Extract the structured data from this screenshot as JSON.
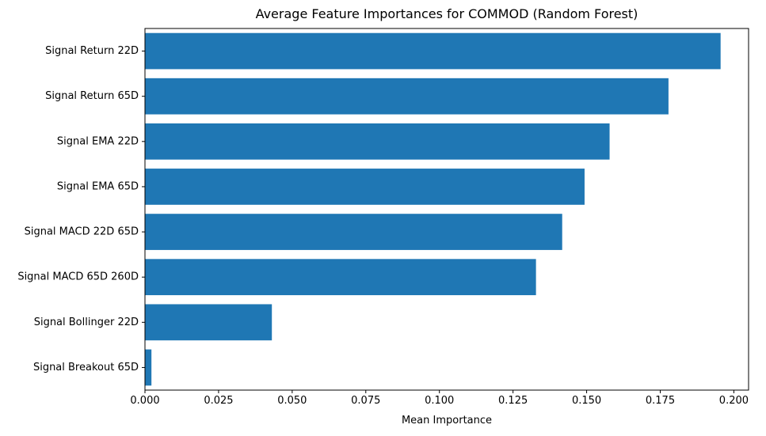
{
  "chart_data": {
    "type": "bar",
    "orientation": "horizontal",
    "title": "Average Feature Importances for COMMOD (Random Forest)",
    "xlabel": "Mean Importance",
    "ylabel": "",
    "xlim": [
      0,
      0.205
    ],
    "x_ticks": [
      0.0,
      0.025,
      0.05,
      0.075,
      0.1,
      0.125,
      0.15,
      0.175,
      0.2
    ],
    "x_tick_labels": [
      "0.000",
      "0.025",
      "0.050",
      "0.075",
      "0.100",
      "0.125",
      "0.150",
      "0.175",
      "0.200"
    ],
    "categories": [
      "Signal Return 22D",
      "Signal Return 65D",
      "Signal EMA 22D",
      "Signal EMA 65D",
      "Signal MACD 22D 65D",
      "Signal MACD 65D 260D",
      "Signal Bollinger 22D",
      "Signal Breakout 65D"
    ],
    "values": [
      0.1955,
      0.1778,
      0.1578,
      0.1493,
      0.1417,
      0.1328,
      0.0431,
      0.0022
    ],
    "bar_color": "#1f77b4",
    "grid": false,
    "legend": "none"
  }
}
